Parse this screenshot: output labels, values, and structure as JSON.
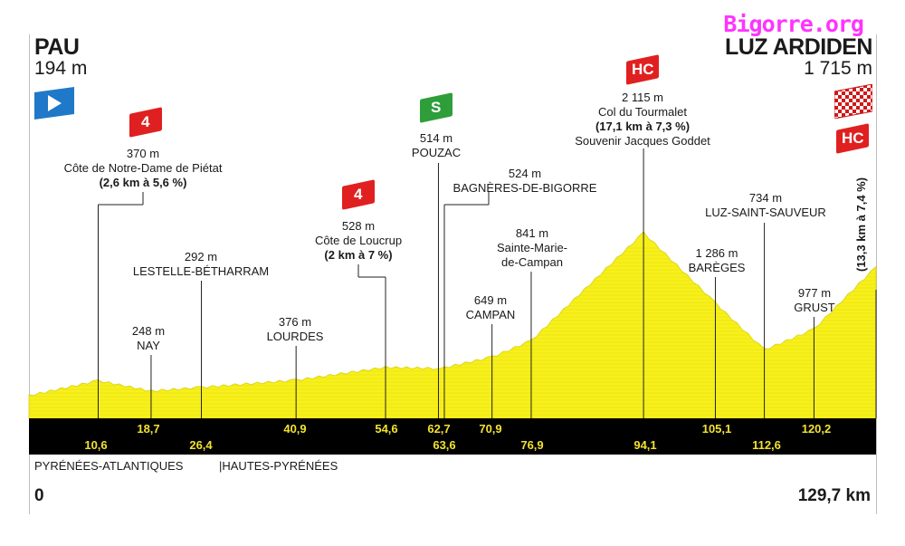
{
  "watermark": "Bigorre.org",
  "start": {
    "name": "PAU",
    "altitude": "194 m"
  },
  "finish": {
    "name": "LUZ ARDIDEN",
    "altitude": "1 715 m"
  },
  "distance_start": "0",
  "distance_end": "129,7 km",
  "departments": [
    "PYRÉNÉES-ATLANTIQUES",
    "|HAUTES-PYRÉNÉES"
  ],
  "finish_climb_note": "(13,3 km à 7,4 %)",
  "colors": {
    "profile_fill": "#f7f01a",
    "bar": "#000000",
    "km_text": "#f2e230",
    "climb_badge": "#e02020",
    "sprint_badge": "#2e9e3a",
    "start_flag": "#1f78c8",
    "watermark": "#ff33ff"
  },
  "waypoints": [
    {
      "id": "cote-notre-dame",
      "alt": "370 m",
      "name": "Côte de Notre-Dame de Piétat",
      "detail": "(2,6 km à 5,6 %)",
      "badge": "4"
    },
    {
      "id": "nay",
      "alt": "248 m",
      "name": "NAY"
    },
    {
      "id": "lestelle",
      "alt": "292 m",
      "name": "LESTELLE-BÉTHARRAM"
    },
    {
      "id": "lourdes",
      "alt": "376 m",
      "name": "LOURDES"
    },
    {
      "id": "cote-loucrup",
      "alt": "528 m",
      "name": "Côte de Loucrup",
      "detail": "(2 km à 7 %)",
      "badge": "4"
    },
    {
      "id": "pouzac",
      "alt": "514 m",
      "name": "POUZAC",
      "badge": "S"
    },
    {
      "id": "bagneres",
      "alt": "524 m",
      "name": "BAGNÈRES-DE-BIGORRE"
    },
    {
      "id": "campan",
      "alt": "649 m",
      "name": "CAMPAN"
    },
    {
      "id": "sainte-marie",
      "alt": "841 m",
      "name": "Sainte-Marie-",
      "name2": "de-Campan"
    },
    {
      "id": "tourmalet",
      "alt": "2 115 m",
      "name": "Col du Tourmalet",
      "detail": "(17,1 km à 7,3 %)",
      "name2": "Souvenir Jacques Goddet",
      "badge": "HC"
    },
    {
      "id": "bareges",
      "alt": "1 286 m",
      "name": "BARÈGES"
    },
    {
      "id": "luz",
      "alt": "734 m",
      "name": "LUZ-SAINT-SAUVEUR"
    },
    {
      "id": "grust",
      "alt": "977 m",
      "name": "GRUST"
    }
  ],
  "finish_badge": "HC",
  "chart_data": {
    "type": "area",
    "xlabel": "",
    "ylabel": "",
    "xlim": [
      0,
      129.7
    ],
    "km_markers_top": [
      "18,7",
      "40,9",
      "54,6",
      "62,7",
      "70,9",
      "105,1",
      "120,2"
    ],
    "km_markers_bottom": [
      "10,6",
      "26,4",
      "63,6",
      "76,9",
      "94,1",
      "112,6"
    ],
    "x": [
      0,
      10.6,
      18.7,
      26.4,
      40.9,
      54.6,
      62.7,
      63.6,
      70.9,
      76.9,
      94.1,
      105.1,
      112.6,
      120.2,
      129.7
    ],
    "y": [
      194,
      370,
      248,
      292,
      376,
      528,
      514,
      524,
      649,
      841,
      2115,
      1286,
      734,
      977,
      1715
    ]
  }
}
